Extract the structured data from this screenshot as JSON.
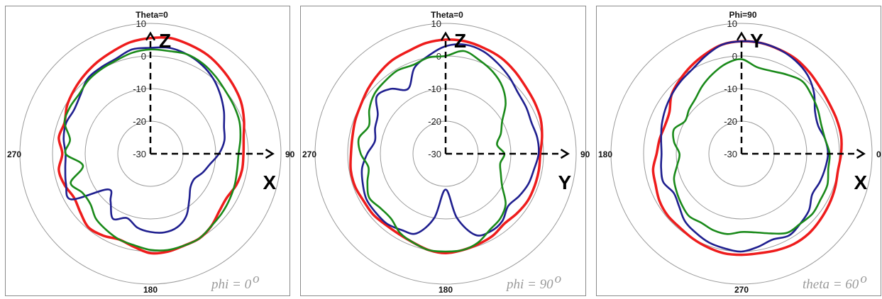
{
  "chart_data": [
    {
      "type": "polar",
      "caption": "phi = 0",
      "caption_sup": "o",
      "top_label": "Theta=0",
      "angle_labels": {
        "left": "270",
        "right": "90",
        "bottom": "180"
      },
      "radial_ticks": [
        "10",
        "0",
        "-10",
        "-20",
        "-30"
      ],
      "rlim": [
        -30,
        10
      ],
      "axis_letters": {
        "up": "Z",
        "right": "X"
      },
      "series": [
        {
          "color": "#ee1c1c",
          "values": [
            5.5,
            6,
            5.5,
            5,
            4,
            3,
            2,
            0.5,
            -1,
            -1.5,
            -1.5,
            -2,
            -3,
            -2.5,
            -1,
            0,
            0,
            0.5,
            0.5,
            -1,
            -2,
            -1,
            -0.5,
            -2,
            -3,
            -2,
            -1.5,
            -3,
            -1.5,
            -2,
            -0.5,
            0.5,
            1.5,
            2.5,
            3.5,
            4.8
          ]
        },
        {
          "color": "#1f1f8f",
          "values": [
            2.5,
            3,
            2.5,
            1.5,
            0,
            -2,
            -4,
            -6,
            -7,
            -9,
            -11.5,
            -13,
            -14.5,
            -14,
            -11.5,
            -8,
            -6,
            -5.5,
            -6,
            -7,
            -9,
            -7,
            -11,
            -13,
            -2,
            -2.5,
            -3.5,
            -4,
            -3,
            -2.5,
            -3,
            -2,
            0,
            0.5,
            1,
            2.5
          ]
        },
        {
          "color": "#1a8a1a",
          "values": [
            2,
            2,
            2.5,
            2,
            1,
            0,
            -0.5,
            -1,
            -2,
            -3,
            -3,
            -2.5,
            -2,
            -1.5,
            -1,
            0,
            0,
            0,
            -0.5,
            -1.5,
            -2,
            -3,
            -4,
            -6,
            -6,
            -4,
            -9,
            -4,
            -5,
            -2,
            -1.5,
            -1.5,
            -0.5,
            0,
            0.5,
            1.5
          ]
        }
      ]
    },
    {
      "type": "polar",
      "caption": "phi = 90",
      "caption_sup": "o",
      "top_label": "Theta=0",
      "angle_labels": {
        "left": "270",
        "right": "90",
        "bottom": "180"
      },
      "radial_ticks": [
        "10",
        "0",
        "-10",
        "-20",
        "-30"
      ],
      "rlim": [
        -30,
        10
      ],
      "axis_letters": {
        "up": "Z",
        "right": "Y"
      },
      "series": [
        {
          "color": "#ee1c1c",
          "values": [
            5,
            5,
            4.5,
            4,
            3,
            2,
            1.5,
            1,
            0,
            -1,
            -1,
            -1,
            -1,
            -1.5,
            -2,
            -1,
            -0.5,
            0,
            0.5,
            0,
            -1,
            -1.5,
            -1.5,
            -1,
            -1,
            -0.5,
            -0.5,
            -1,
            -1,
            -0.5,
            0,
            1,
            2,
            3,
            3.5,
            4.5
          ]
        },
        {
          "color": "#1f1f8f",
          "values": [
            3,
            4,
            3.5,
            2,
            0.5,
            -1,
            -1.5,
            -2,
            -1.5,
            -1.5,
            -2.5,
            -3,
            -4,
            -5,
            -3,
            -2.5,
            -3.5,
            -10,
            -19,
            -10,
            -4,
            -3,
            -2,
            -2,
            -2,
            -3,
            -4,
            -6,
            -8,
            -7,
            -6,
            -2.5,
            -4,
            -7,
            -2,
            0.5
          ]
        },
        {
          "color": "#1a8a1a",
          "values": [
            0,
            2,
            0.5,
            -1,
            -3,
            -6,
            -10,
            -12,
            -14,
            -12,
            -13,
            -12,
            -10,
            -6,
            -4,
            -3,
            -1,
            0,
            0,
            0,
            -1,
            -2,
            -4,
            -4,
            -3,
            -4.5,
            -6,
            -4,
            -3,
            -5,
            -3,
            -1.5,
            -1,
            -0.5,
            -1,
            0
          ]
        }
      ]
    },
    {
      "type": "polar",
      "caption": "theta = 60",
      "caption_sup": "o",
      "top_label": "Phi=90",
      "angle_labels": {
        "left": "180",
        "right": "0",
        "bottom": "270"
      },
      "radial_ticks": [
        "10",
        "0",
        "-10",
        "-20",
        "-30"
      ],
      "rlim": [
        -30,
        10
      ],
      "axis_letters": {
        "up": "Y",
        "right": "X"
      },
      "series": [
        {
          "color": "#ee1c1c",
          "values": [
            4.5,
            4.5,
            4,
            3.5,
            2.5,
            1.5,
            1,
            1,
            1,
            0.5,
            0,
            0.5,
            1,
            1.5,
            2,
            2,
            1.5,
            1,
            1,
            1,
            0.5,
            0,
            -0.5,
            -0.5,
            -1,
            -2,
            -2.5,
            -4,
            -4.5,
            -5,
            -4.5,
            -2,
            -0.5,
            1,
            2.5,
            4
          ]
        },
        {
          "color": "#1f1f8f",
          "values": [
            4.5,
            4.5,
            4,
            3,
            1.5,
            -1,
            -4,
            -5,
            -4,
            -3.5,
            -4,
            -4.5,
            -5,
            -3,
            -2,
            -1,
            -2,
            -1,
            0,
            -0.5,
            -1,
            -2,
            -3,
            -5,
            -6,
            -4.5,
            -5,
            -5.5,
            -5,
            -4,
            -3,
            -2,
            -1,
            0,
            2,
            4
          ]
        },
        {
          "color": "#1a8a1a",
          "values": [
            -1,
            -3,
            -3,
            -2,
            -1,
            -2,
            -3,
            -4,
            -4,
            -3,
            -3,
            -2,
            -2,
            -1.5,
            -2,
            -2,
            -4,
            -5.5,
            -6,
            -5,
            -5,
            -5.5,
            -5,
            -6,
            -7,
            -8,
            -10,
            -11,
            -9,
            -8,
            -10,
            -9,
            -8,
            -6,
            -4,
            -2
          ]
        }
      ]
    }
  ]
}
